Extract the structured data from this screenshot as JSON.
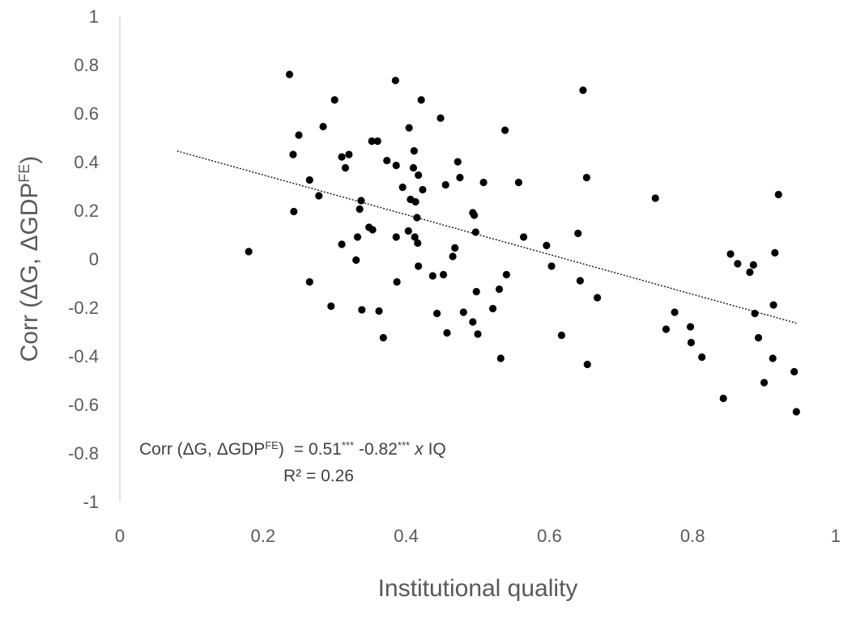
{
  "chart_data": {
    "type": "scatter",
    "xlabel": "Institutional  quality",
    "ylabel": {
      "main": "Corr (ΔG, ΔGDP",
      "sup": "FE",
      "close": ")"
    },
    "xlim": [
      0,
      1
    ],
    "ylim": [
      -1,
      1
    ],
    "x_ticks": [
      "0",
      "0.2",
      "0.4",
      "0.6",
      "0.8",
      "1"
    ],
    "y_ticks": [
      "-1",
      "-0.8",
      "-0.6",
      "-0.4",
      "-0.2",
      "0",
      "0.2",
      "0.4",
      "0.6",
      "0.8",
      "1"
    ],
    "grid": false,
    "equation": {
      "lhs": "Corr (ΔG, ΔGDP",
      "lhs_sup": "FE",
      "lhs_close": ")",
      "eq": "= 0.51",
      "stars1": "***",
      "coef": "-0.82",
      "stars2": "***",
      "times": "x",
      "var": "IQ",
      "r2": "R² = 0.26"
    },
    "trendline": {
      "intercept": 0.51,
      "slope": -0.82,
      "x_range": [
        0.08,
        0.945
      ],
      "style": "dotted"
    },
    "points": [
      [
        0.18,
        0.03
      ],
      [
        0.237,
        0.76
      ],
      [
        0.242,
        0.43
      ],
      [
        0.243,
        0.195
      ],
      [
        0.25,
        0.51
      ],
      [
        0.265,
        0.325
      ],
      [
        0.265,
        -0.095
      ],
      [
        0.278,
        0.26
      ],
      [
        0.284,
        0.545
      ],
      [
        0.295,
        -0.195
      ],
      [
        0.3,
        0.655
      ],
      [
        0.31,
        0.06
      ],
      [
        0.31,
        0.42
      ],
      [
        0.315,
        0.375
      ],
      [
        0.32,
        0.43
      ],
      [
        0.33,
        -0.005
      ],
      [
        0.332,
        0.09
      ],
      [
        0.335,
        0.205
      ],
      [
        0.337,
        0.24
      ],
      [
        0.338,
        -0.21
      ],
      [
        0.348,
        0.13
      ],
      [
        0.352,
        0.485
      ],
      [
        0.353,
        0.12
      ],
      [
        0.36,
        0.485
      ],
      [
        0.362,
        -0.215
      ],
      [
        0.368,
        -0.325
      ],
      [
        0.373,
        0.405
      ],
      [
        0.385,
        0.735
      ],
      [
        0.386,
        0.385
      ],
      [
        0.386,
        0.09
      ],
      [
        0.387,
        -0.095
      ],
      [
        0.395,
        0.295
      ],
      [
        0.403,
        0.115
      ],
      [
        0.404,
        0.54
      ],
      [
        0.406,
        0.245
      ],
      [
        0.41,
        0.375
      ],
      [
        0.411,
        0.445
      ],
      [
        0.412,
        0.09
      ],
      [
        0.413,
        0.235
      ],
      [
        0.415,
        0.17
      ],
      [
        0.416,
        0.065
      ],
      [
        0.417,
        0.345
      ],
      [
        0.417,
        -0.03
      ],
      [
        0.421,
        0.655
      ],
      [
        0.423,
        0.285
      ],
      [
        0.437,
        -0.07
      ],
      [
        0.443,
        -0.225
      ],
      [
        0.448,
        0.58
      ],
      [
        0.452,
        -0.065
      ],
      [
        0.455,
        0.305
      ],
      [
        0.457,
        -0.305
      ],
      [
        0.465,
        0.01
      ],
      [
        0.468,
        0.045
      ],
      [
        0.472,
        0.4
      ],
      [
        0.475,
        0.335
      ],
      [
        0.48,
        -0.22
      ],
      [
        0.493,
        -0.26
      ],
      [
        0.493,
        0.19
      ],
      [
        0.495,
        0.18
      ],
      [
        0.497,
        0.11
      ],
      [
        0.498,
        -0.135
      ],
      [
        0.5,
        -0.31
      ],
      [
        0.508,
        0.315
      ],
      [
        0.521,
        -0.205
      ],
      [
        0.53,
        -0.125
      ],
      [
        0.532,
        -0.41
      ],
      [
        0.538,
        0.53
      ],
      [
        0.54,
        -0.065
      ],
      [
        0.557,
        0.315
      ],
      [
        0.564,
        0.09
      ],
      [
        0.596,
        0.055
      ],
      [
        0.603,
        -0.03
      ],
      [
        0.617,
        -0.315
      ],
      [
        0.64,
        0.105
      ],
      [
        0.643,
        -0.09
      ],
      [
        0.647,
        0.695
      ],
      [
        0.652,
        0.335
      ],
      [
        0.653,
        -0.435
      ],
      [
        0.667,
        -0.16
      ],
      [
        0.748,
        0.25
      ],
      [
        0.763,
        -0.29
      ],
      [
        0.775,
        -0.22
      ],
      [
        0.797,
        -0.28
      ],
      [
        0.798,
        -0.345
      ],
      [
        0.813,
        -0.405
      ],
      [
        0.843,
        -0.575
      ],
      [
        0.853,
        0.02
      ],
      [
        0.863,
        -0.02
      ],
      [
        0.88,
        -0.055
      ],
      [
        0.885,
        -0.025
      ],
      [
        0.887,
        -0.225
      ],
      [
        0.892,
        -0.325
      ],
      [
        0.9,
        -0.51
      ],
      [
        0.912,
        -0.41
      ],
      [
        0.913,
        -0.19
      ],
      [
        0.915,
        0.025
      ],
      [
        0.92,
        0.265
      ],
      [
        0.942,
        -0.465
      ],
      [
        0.945,
        -0.63
      ]
    ]
  }
}
